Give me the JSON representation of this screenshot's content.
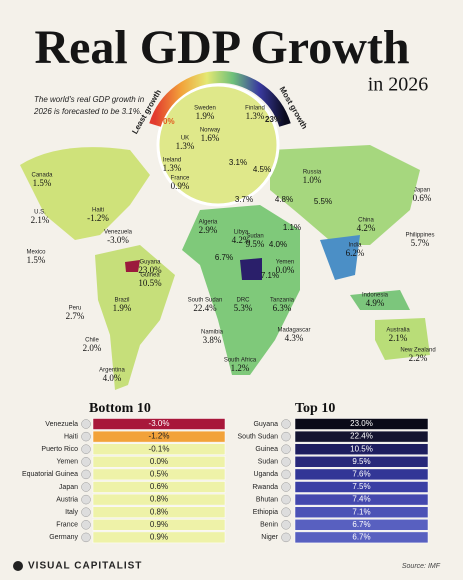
{
  "header": {
    "title": "Real GDP Growth",
    "subtitle": "in 2026",
    "note": [
      "The world's real GDP growth in",
      "2026 is forecasted to be 3.1%."
    ]
  },
  "legend": {
    "low_label": "Least growth",
    "high_label": "Most growth",
    "low_value": "0%",
    "high_value": "23%"
  },
  "map_labels": [
    [
      "Canada",
      "1.5%"
    ],
    [
      "U.S.",
      "2.1%"
    ],
    [
      "Mexico",
      "1.5%"
    ],
    [
      "Haiti",
      "-1.2%"
    ],
    [
      "Venezuela",
      "-3.0%"
    ],
    [
      "Guyana",
      "23.0%"
    ],
    [
      "Peru",
      "2.7%"
    ],
    [
      "Brazil",
      "1.9%"
    ],
    [
      "Chile",
      "2.0%"
    ],
    [
      "Argentina",
      "4.0%"
    ],
    [
      "Sweden",
      "1.9%"
    ],
    [
      "Finland",
      "1.3%"
    ],
    [
      "Norway",
      "1.6%"
    ],
    [
      "UK",
      "1.3%"
    ],
    [
      "Ireland",
      "1.3%"
    ],
    [
      "France",
      "0.9%"
    ],
    [
      "Russia",
      "1.0%"
    ],
    [
      "Algeria",
      "2.9%"
    ],
    [
      "Libya",
      "4.2%"
    ],
    [
      "China",
      "4.2%"
    ],
    [
      "Japan",
      "0.6%"
    ],
    [
      "Sudan",
      "9.5%"
    ],
    [
      "Yemen",
      "0.0%"
    ],
    [
      "India",
      "6.2%"
    ],
    [
      "Guinea",
      "10.5%"
    ],
    [
      "South Sudan",
      "22.4%"
    ],
    [
      "DRC",
      "5.3%"
    ],
    [
      "Tanzania",
      "6.3%"
    ],
    [
      "Philippines",
      "5.7%"
    ],
    [
      "Indonesia",
      "4.9%"
    ],
    [
      "Namibia",
      "3.8%"
    ],
    [
      "Madagascar",
      "4.3%"
    ],
    [
      "South Africa",
      "1.2%"
    ],
    [
      "Australia",
      "2.1%"
    ],
    [
      "New Zealand",
      "2.2%"
    ]
  ],
  "map_values": [
    "3.1%",
    "4.5%",
    "3.7%",
    "4.8%",
    "5.5%",
    "1.1%",
    "4.0%",
    "6.7%",
    "7.1%"
  ],
  "bottom10": {
    "title": "Bottom 10",
    "rows": [
      [
        "Venezuela",
        "-3.0%"
      ],
      [
        "Haiti",
        "-1.2%"
      ],
      [
        "Puerto Rico",
        "-0.1%"
      ],
      [
        "Yemen",
        "0.0%"
      ],
      [
        "Equatorial Guinea",
        "0.5%"
      ],
      [
        "Japan",
        "0.6%"
      ],
      [
        "Austria",
        "0.8%"
      ],
      [
        "Italy",
        "0.8%"
      ],
      [
        "France",
        "0.9%"
      ],
      [
        "Germany",
        "0.9%"
      ]
    ]
  },
  "top10": {
    "title": "Top 10",
    "rows": [
      [
        "Guyana",
        "23.0%"
      ],
      [
        "South Sudan",
        "22.4%"
      ],
      [
        "Guinea",
        "10.5%"
      ],
      [
        "Sudan",
        "9.5%"
      ],
      [
        "Uganda",
        "7.6%"
      ],
      [
        "Rwanda",
        "7.5%"
      ],
      [
        "Bhutan",
        "7.4%"
      ],
      [
        "Ethiopia",
        "7.1%"
      ],
      [
        "Benin",
        "6.7%"
      ],
      [
        "Niger",
        "6.7%"
      ]
    ]
  },
  "footer": {
    "brand": "VISUAL CAPITALIST",
    "source": "Source: IMF"
  }
}
